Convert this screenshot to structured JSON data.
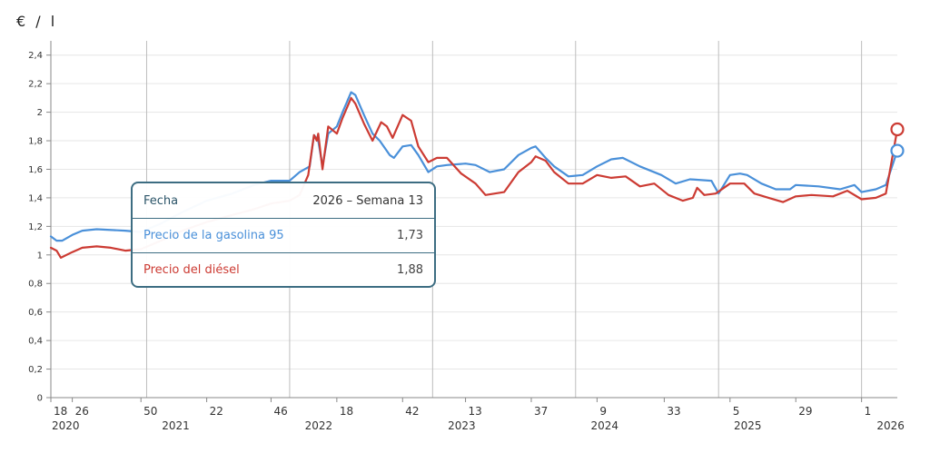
{
  "unit_label": "€ / l",
  "chart_data": {
    "type": "line",
    "title": "",
    "xlabel": "",
    "ylabel": "€ / l",
    "ylim": [
      0,
      2.5
    ],
    "yticks": [
      {
        "value": 0,
        "label": "0"
      },
      {
        "value": 0.2,
        "label": "0,2"
      },
      {
        "value": 0.4,
        "label": "0,4"
      },
      {
        "value": 0.6,
        "label": "0,6"
      },
      {
        "value": 0.8,
        "label": "0,8"
      },
      {
        "value": 1,
        "label": "1"
      },
      {
        "value": 1.2,
        "label": "1,2"
      },
      {
        "value": 1.4,
        "label": "1,4"
      },
      {
        "value": 1.6,
        "label": "1,6"
      },
      {
        "value": 1.8,
        "label": "1,8"
      },
      {
        "value": 2,
        "label": "2"
      },
      {
        "value": 2.2,
        "label": "2,2"
      },
      {
        "value": 2.4,
        "label": "2,4"
      }
    ],
    "grid": true,
    "x_unit": "semana",
    "xlim": [
      2020.33,
      2026.25
    ],
    "year_boundaries": [
      2021,
      2022,
      2023,
      2024,
      2025,
      2026
    ],
    "xticks": [
      {
        "value": 2020.33,
        "label": "18"
      },
      {
        "value": 2020.48,
        "label": "26"
      },
      {
        "value": 2020.96,
        "label": "50"
      },
      {
        "value": 2021.42,
        "label": "22"
      },
      {
        "value": 2021.87,
        "label": "46"
      },
      {
        "value": 2022.33,
        "label": "18"
      },
      {
        "value": 2022.79,
        "label": "42"
      },
      {
        "value": 2023.23,
        "label": "13"
      },
      {
        "value": 2023.69,
        "label": "37"
      },
      {
        "value": 2024.15,
        "label": "9"
      },
      {
        "value": 2024.62,
        "label": "33"
      },
      {
        "value": 2025.08,
        "label": "5"
      },
      {
        "value": 2025.54,
        "label": "29"
      },
      {
        "value": 2026.0,
        "label": "1"
      }
    ],
    "year_labels": [
      {
        "value": 2020.33,
        "label": "2020"
      },
      {
        "value": 2021.1,
        "label": "2021"
      },
      {
        "value": 2022.1,
        "label": "2022"
      },
      {
        "value": 2023.1,
        "label": "2023"
      },
      {
        "value": 2024.1,
        "label": "2024"
      },
      {
        "value": 2025.1,
        "label": "2025"
      },
      {
        "value": 2026.1,
        "label": "2026"
      }
    ],
    "series": [
      {
        "name": "Precio de la gasolina 95",
        "color": "#4a90d9",
        "points": [
          [
            2020.33,
            1.13
          ],
          [
            2020.37,
            1.1
          ],
          [
            2020.41,
            1.1
          ],
          [
            2020.48,
            1.14
          ],
          [
            2020.55,
            1.17
          ],
          [
            2020.65,
            1.18
          ],
          [
            2020.85,
            1.17
          ],
          [
            2020.96,
            1.16
          ],
          [
            2021.1,
            1.22
          ],
          [
            2021.25,
            1.3
          ],
          [
            2021.42,
            1.38
          ],
          [
            2021.6,
            1.43
          ],
          [
            2021.75,
            1.49
          ],
          [
            2021.87,
            1.52
          ],
          [
            2022.0,
            1.52
          ],
          [
            2022.07,
            1.58
          ],
          [
            2022.14,
            1.62
          ],
          [
            2022.17,
            1.84
          ],
          [
            2022.2,
            1.8
          ],
          [
            2022.23,
            1.62
          ],
          [
            2022.27,
            1.85
          ],
          [
            2022.33,
            1.9
          ],
          [
            2022.37,
            2.0
          ],
          [
            2022.43,
            2.14
          ],
          [
            2022.46,
            2.12
          ],
          [
            2022.52,
            1.98
          ],
          [
            2022.58,
            1.85
          ],
          [
            2022.63,
            1.8
          ],
          [
            2022.7,
            1.7
          ],
          [
            2022.73,
            1.68
          ],
          [
            2022.79,
            1.76
          ],
          [
            2022.85,
            1.77
          ],
          [
            2022.9,
            1.7
          ],
          [
            2022.97,
            1.58
          ],
          [
            2023.03,
            1.62
          ],
          [
            2023.1,
            1.63
          ],
          [
            2023.23,
            1.64
          ],
          [
            2023.3,
            1.63
          ],
          [
            2023.4,
            1.58
          ],
          [
            2023.5,
            1.6
          ],
          [
            2023.6,
            1.7
          ],
          [
            2023.69,
            1.75
          ],
          [
            2023.72,
            1.76
          ],
          [
            2023.79,
            1.68
          ],
          [
            2023.85,
            1.62
          ],
          [
            2023.95,
            1.55
          ],
          [
            2024.05,
            1.56
          ],
          [
            2024.15,
            1.62
          ],
          [
            2024.25,
            1.67
          ],
          [
            2024.33,
            1.68
          ],
          [
            2024.45,
            1.62
          ],
          [
            2024.6,
            1.56
          ],
          [
            2024.7,
            1.5
          ],
          [
            2024.8,
            1.53
          ],
          [
            2024.95,
            1.52
          ],
          [
            2025.0,
            1.43
          ],
          [
            2025.08,
            1.56
          ],
          [
            2025.15,
            1.57
          ],
          [
            2025.2,
            1.56
          ],
          [
            2025.3,
            1.5
          ],
          [
            2025.4,
            1.46
          ],
          [
            2025.5,
            1.46
          ],
          [
            2025.54,
            1.49
          ],
          [
            2025.7,
            1.48
          ],
          [
            2025.85,
            1.46
          ],
          [
            2025.95,
            1.49
          ],
          [
            2026.0,
            1.44
          ],
          [
            2026.1,
            1.46
          ],
          [
            2026.17,
            1.49
          ],
          [
            2026.25,
            1.73
          ]
        ]
      },
      {
        "name": "Precio del diésel",
        "color": "#cc3b33",
        "points": [
          [
            2020.33,
            1.05
          ],
          [
            2020.37,
            1.03
          ],
          [
            2020.4,
            0.98
          ],
          [
            2020.48,
            1.02
          ],
          [
            2020.55,
            1.05
          ],
          [
            2020.65,
            1.06
          ],
          [
            2020.75,
            1.05
          ],
          [
            2020.85,
            1.03
          ],
          [
            2020.96,
            1.04
          ],
          [
            2021.1,
            1.1
          ],
          [
            2021.25,
            1.17
          ],
          [
            2021.42,
            1.23
          ],
          [
            2021.6,
            1.28
          ],
          [
            2021.75,
            1.32
          ],
          [
            2021.87,
            1.36
          ],
          [
            2022.0,
            1.38
          ],
          [
            2022.07,
            1.42
          ],
          [
            2022.13,
            1.56
          ],
          [
            2022.17,
            1.84
          ],
          [
            2022.19,
            1.8
          ],
          [
            2022.2,
            1.85
          ],
          [
            2022.23,
            1.6
          ],
          [
            2022.27,
            1.9
          ],
          [
            2022.33,
            1.85
          ],
          [
            2022.37,
            1.96
          ],
          [
            2022.43,
            2.1
          ],
          [
            2022.46,
            2.06
          ],
          [
            2022.52,
            1.92
          ],
          [
            2022.58,
            1.8
          ],
          [
            2022.64,
            1.93
          ],
          [
            2022.68,
            1.9
          ],
          [
            2022.72,
            1.82
          ],
          [
            2022.79,
            1.98
          ],
          [
            2022.85,
            1.94
          ],
          [
            2022.9,
            1.76
          ],
          [
            2022.97,
            1.65
          ],
          [
            2023.03,
            1.68
          ],
          [
            2023.1,
            1.68
          ],
          [
            2023.2,
            1.57
          ],
          [
            2023.3,
            1.5
          ],
          [
            2023.37,
            1.42
          ],
          [
            2023.5,
            1.44
          ],
          [
            2023.6,
            1.58
          ],
          [
            2023.69,
            1.65
          ],
          [
            2023.72,
            1.69
          ],
          [
            2023.79,
            1.66
          ],
          [
            2023.85,
            1.58
          ],
          [
            2023.95,
            1.5
          ],
          [
            2024.05,
            1.5
          ],
          [
            2024.15,
            1.56
          ],
          [
            2024.25,
            1.54
          ],
          [
            2024.35,
            1.55
          ],
          [
            2024.45,
            1.48
          ],
          [
            2024.55,
            1.5
          ],
          [
            2024.65,
            1.42
          ],
          [
            2024.75,
            1.38
          ],
          [
            2024.82,
            1.4
          ],
          [
            2024.85,
            1.47
          ],
          [
            2024.9,
            1.42
          ],
          [
            2024.98,
            1.43
          ],
          [
            2025.08,
            1.5
          ],
          [
            2025.18,
            1.5
          ],
          [
            2025.25,
            1.43
          ],
          [
            2025.35,
            1.4
          ],
          [
            2025.45,
            1.37
          ],
          [
            2025.54,
            1.41
          ],
          [
            2025.65,
            1.42
          ],
          [
            2025.8,
            1.41
          ],
          [
            2025.9,
            1.45
          ],
          [
            2026.0,
            1.39
          ],
          [
            2026.1,
            1.4
          ],
          [
            2026.17,
            1.43
          ],
          [
            2026.25,
            1.88
          ]
        ]
      }
    ],
    "highlight": {
      "x": 2026.25
    },
    "tooltip": {
      "fecha_label": "Fecha",
      "fecha_value": "2026 – Semana 13",
      "rows": [
        {
          "label": "Precio de la gasolina 95",
          "value": "1,73"
        },
        {
          "label": "Precio del diésel",
          "value": "1,88"
        }
      ]
    }
  }
}
